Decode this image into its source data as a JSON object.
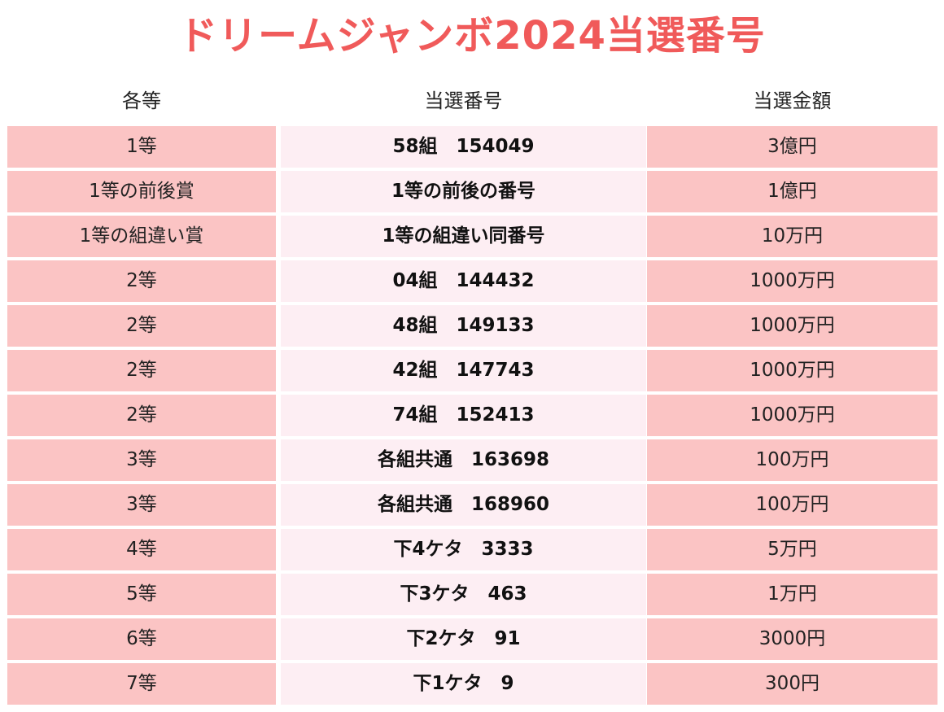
{
  "title": "ドリームジャンボ2024当選番号",
  "colors": {
    "title": "#f05a5a",
    "side_cell_bg": "#fbc4c4",
    "middle_cell_bg": "#fdeef3"
  },
  "headers": {
    "grade": "各等",
    "number": "当選番号",
    "amount": "当選金額"
  },
  "rows": [
    {
      "grade": "1等",
      "number": "58組　154049",
      "amount": "3億円"
    },
    {
      "grade": "1等の前後賞",
      "number": "1等の前後の番号",
      "amount": "1億円"
    },
    {
      "grade": "1等の組違い賞",
      "number": "1等の組違い同番号",
      "amount": "10万円"
    },
    {
      "grade": "2等",
      "number": "04組　144432",
      "amount": "1000万円"
    },
    {
      "grade": "2等",
      "number": "48組　149133",
      "amount": "1000万円"
    },
    {
      "grade": "2等",
      "number": "42組　147743",
      "amount": "1000万円"
    },
    {
      "grade": "2等",
      "number": "74組　152413",
      "amount": "1000万円"
    },
    {
      "grade": "3等",
      "number": "各組共通　163698",
      "amount": "100万円"
    },
    {
      "grade": "3等",
      "number": "各組共通　168960",
      "amount": "100万円"
    },
    {
      "grade": "4等",
      "number": "下4ケタ　3333",
      "amount": "5万円"
    },
    {
      "grade": "5等",
      "number": "下3ケタ　463",
      "amount": "1万円"
    },
    {
      "grade": "6等",
      "number": "下2ケタ　91",
      "amount": "3000円"
    },
    {
      "grade": "7等",
      "number": "下1ケタ　9",
      "amount": "300円"
    }
  ]
}
